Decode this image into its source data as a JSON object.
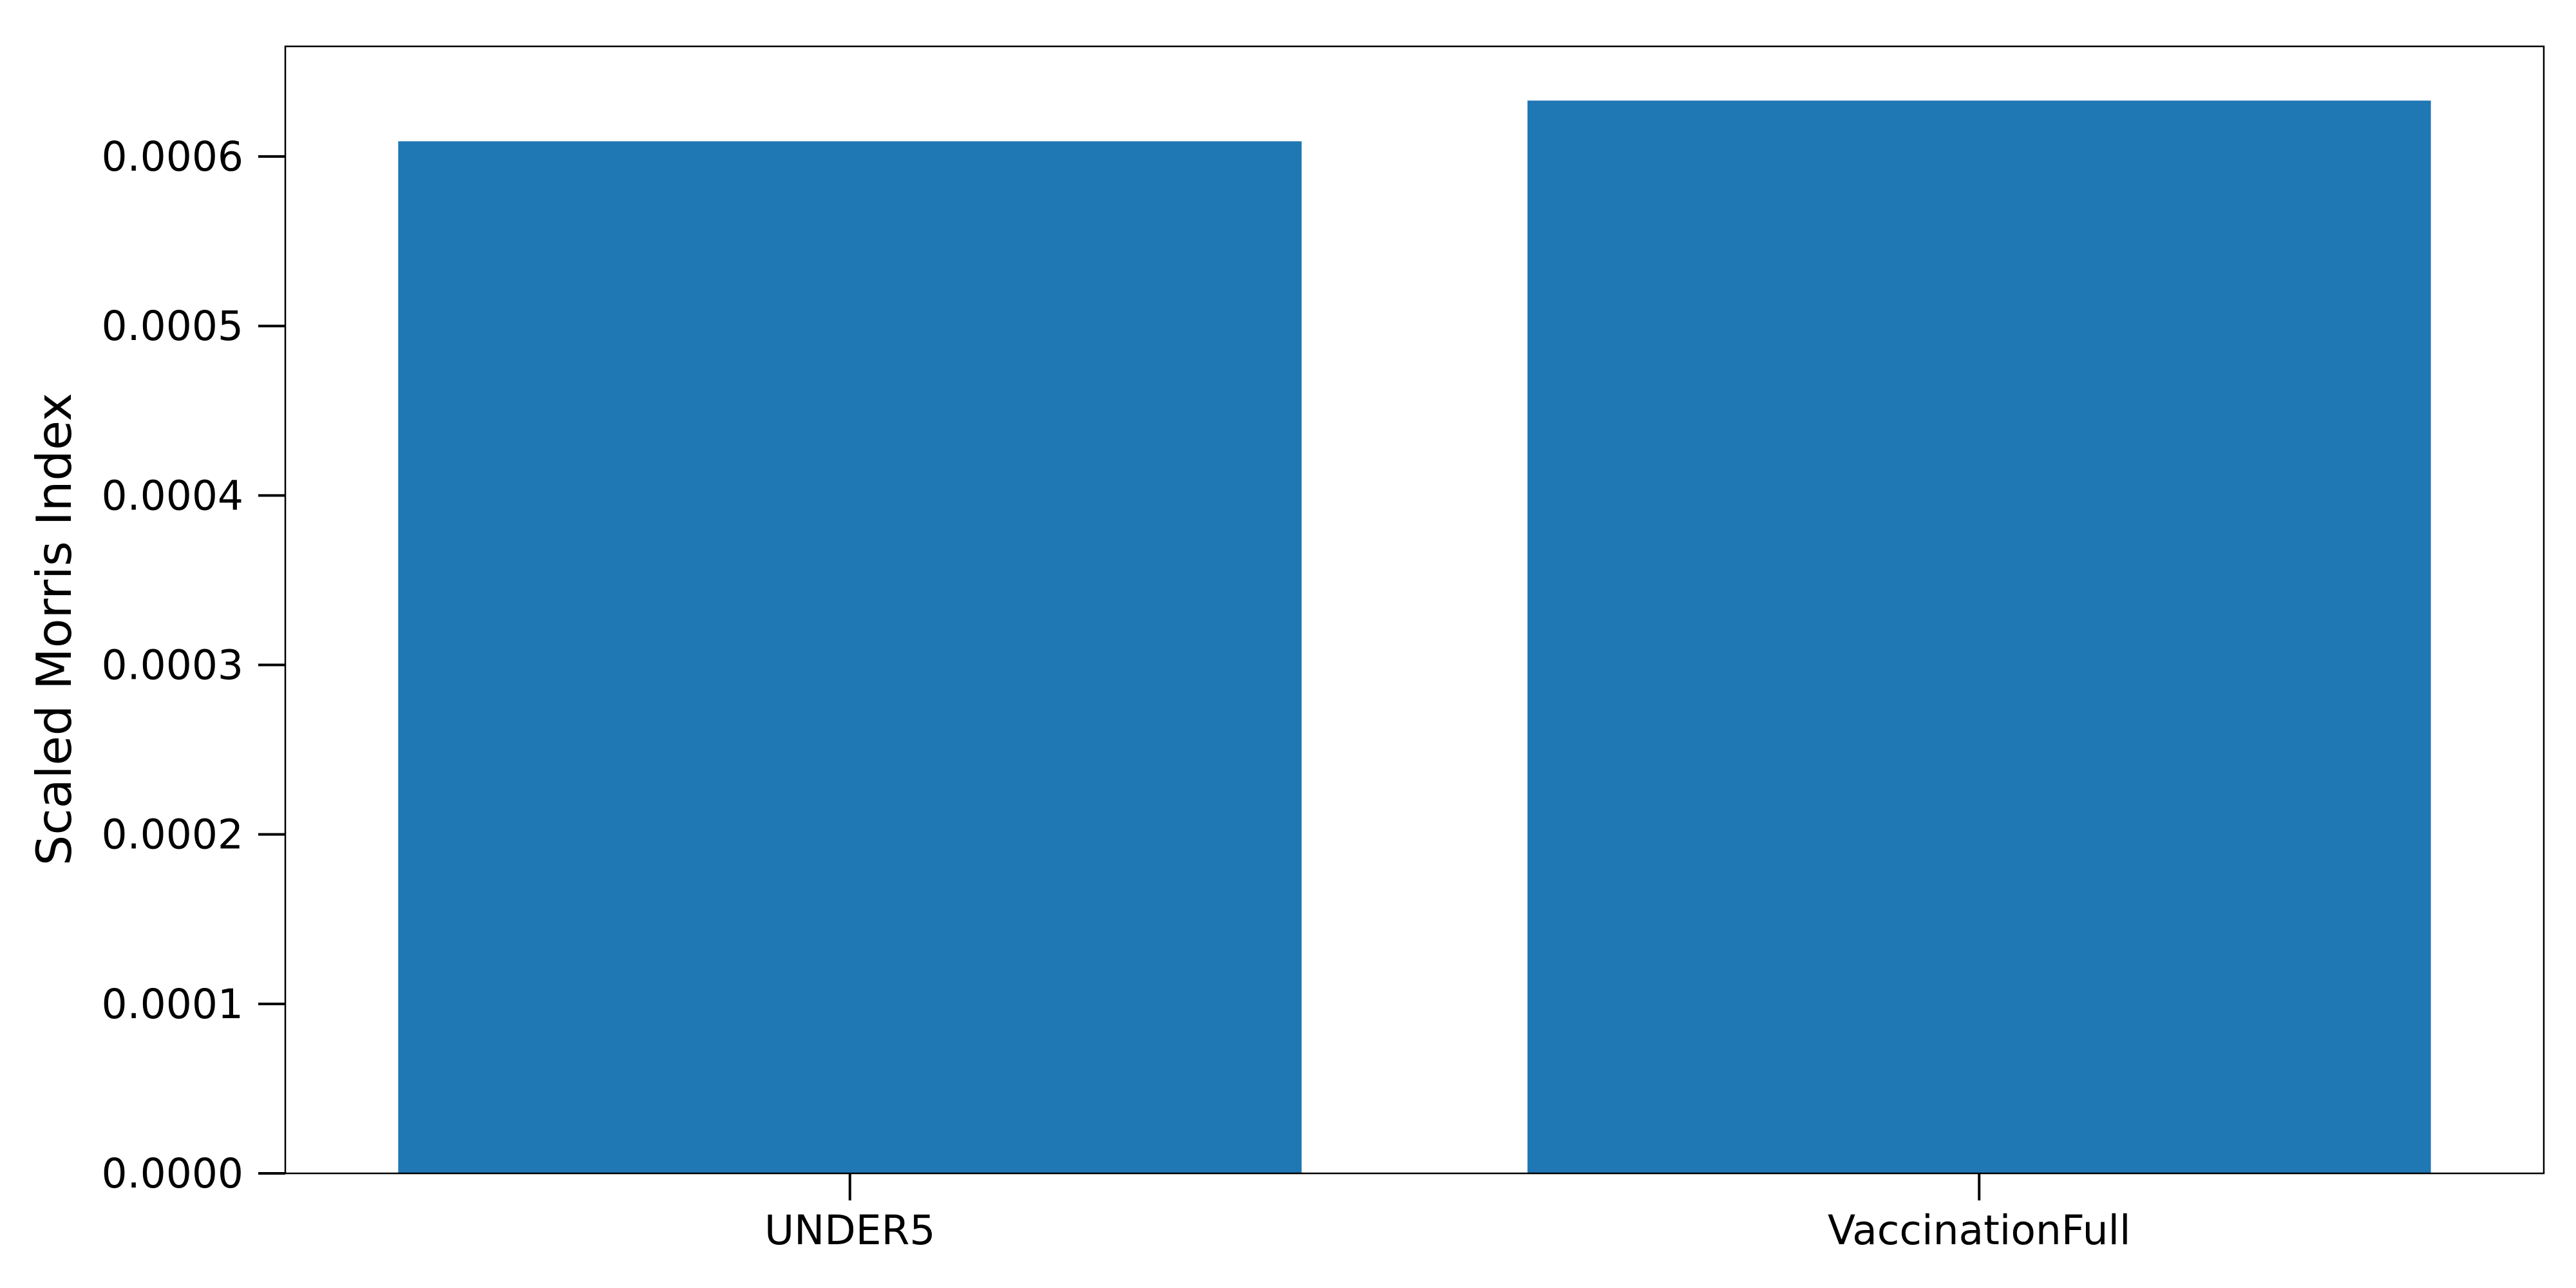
{
  "chart_data": {
    "type": "bar",
    "categories": [
      "UNDER5",
      "VaccinationFull"
    ],
    "values": [
      0.000609,
      0.000633
    ],
    "title": "",
    "xlabel": "",
    "ylabel": "Scaled Morris Index",
    "ylim": [
      0,
      0.000665
    ],
    "yticks": [
      0.0,
      0.0001,
      0.0002,
      0.0003,
      0.0004,
      0.0005,
      0.0006
    ],
    "ytick_labels": [
      "0.0000",
      "0.0001",
      "0.0002",
      "0.0003",
      "0.0004",
      "0.0005",
      "0.0006"
    ],
    "bar_color": "#1f77b4",
    "grid": false,
    "legend": false
  }
}
